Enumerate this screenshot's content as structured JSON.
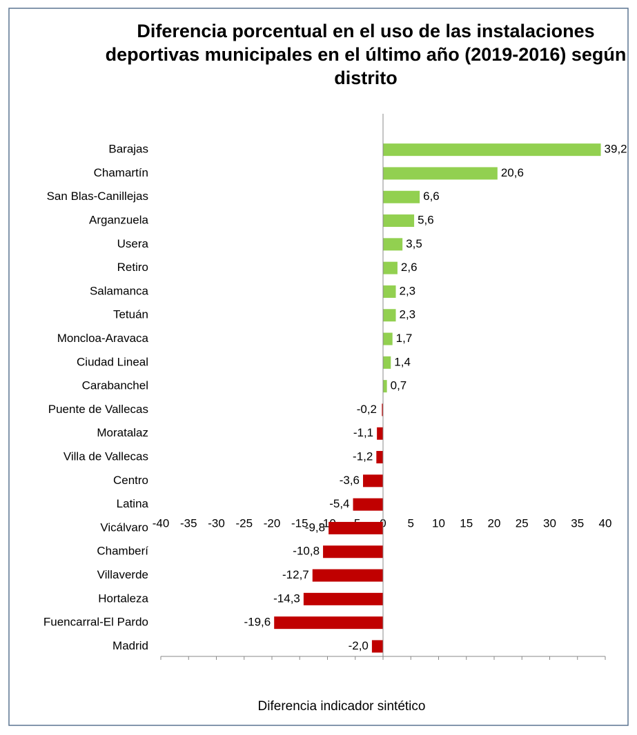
{
  "chart_data": {
    "type": "bar",
    "orientation": "horizontal",
    "title": "Diferencia porcentual en el uso de las instalaciones deportivas municipales en el último año (2019-2016) según distrito",
    "x_label": "Diferencia indicador sintético",
    "categories": [
      "Barajas",
      "Chamartín",
      "San Blas-Canillejas",
      "Arganzuela",
      "Usera",
      "Retiro",
      "Salamanca",
      "Tetuán",
      "Moncloa-Aravaca",
      "Ciudad Lineal",
      "Carabanchel",
      "Puente de Vallecas",
      "Moratalaz",
      "Villa de Vallecas",
      "Centro",
      "Latina",
      "Vicálvaro",
      "Chamberí",
      "Villaverde",
      "Hortaleza",
      "Fuencarral-El Pardo",
      "Madrid"
    ],
    "values": [
      39.2,
      20.6,
      6.6,
      5.6,
      3.5,
      2.6,
      2.3,
      2.3,
      1.7,
      1.4,
      0.7,
      -0.2,
      -1.1,
      -1.2,
      -3.6,
      -5.4,
      -9.8,
      -10.8,
      -12.7,
      -14.3,
      -19.6,
      -2.0
    ],
    "value_labels": [
      "39,2",
      "20,6",
      "6,6",
      "5,6",
      "3,5",
      "2,6",
      "2,3",
      "2,3",
      "1,7",
      "1,4",
      "0,7",
      "-0,2",
      "-1,1",
      "-1,2",
      "-3,6",
      "-5,4",
      "-9,8",
      "-10,8",
      "-12,7",
      "-14,3",
      "-19,6",
      "-2,0"
    ],
    "positive_color": "#92d050",
    "negative_color": "#c00000",
    "xlim": [
      -40,
      40
    ],
    "xticks": [
      -40,
      -35,
      -30,
      -25,
      -20,
      -15,
      -10,
      -5,
      0,
      5,
      10,
      15,
      20,
      25,
      30,
      35,
      40
    ]
  }
}
